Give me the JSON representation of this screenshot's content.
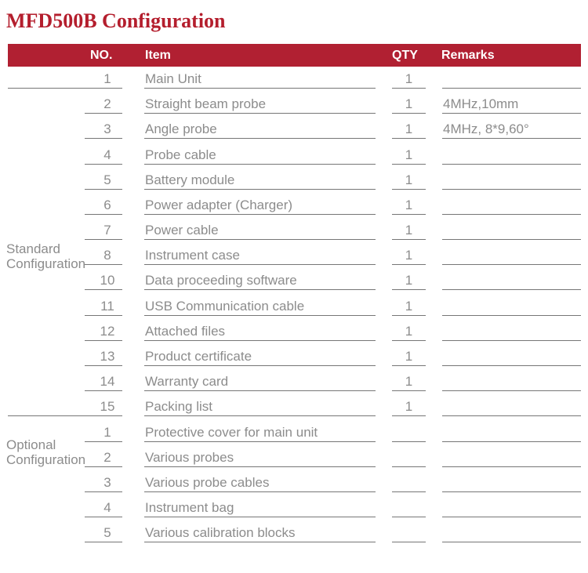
{
  "page_title": "MFD500B Configuration",
  "colors": {
    "accent_red": "#b12032",
    "title_red": "#b41e2d",
    "text_gray": "#8c8c8c",
    "line_gray": "#767676"
  },
  "table": {
    "headers": {
      "no": "NO.",
      "item": "Item",
      "qty": "QTY",
      "remarks": "Remarks"
    },
    "groups": [
      {
        "label": "Standard Configuration",
        "rows": [
          {
            "no": "1",
            "item": "Main Unit",
            "qty": "1",
            "remarks": ""
          },
          {
            "no": "2",
            "item": "Straight beam probe",
            "qty": "1",
            "remarks": "4MHz,10mm"
          },
          {
            "no": "3",
            "item": "Angle probe",
            "qty": "1",
            "remarks": "4MHz, 8*9,60°"
          },
          {
            "no": "4",
            "item": "Probe cable",
            "qty": "1",
            "remarks": ""
          },
          {
            "no": "5",
            "item": "Battery module",
            "qty": "1",
            "remarks": ""
          },
          {
            "no": "6",
            "item": "Power adapter (Charger)",
            "qty": "1",
            "remarks": ""
          },
          {
            "no": "7",
            "item": "Power cable",
            "qty": "1",
            "remarks": ""
          },
          {
            "no": "8",
            "item": "Instrument case",
            "qty": "1",
            "remarks": ""
          },
          {
            "no": "10",
            "item": "Data proceeding software",
            "qty": "1",
            "remarks": ""
          },
          {
            "no": "11",
            "item": "USB Communication cable",
            "qty": "1",
            "remarks": ""
          },
          {
            "no": "12",
            "item": "Attached files",
            "qty": "1",
            "remarks": ""
          },
          {
            "no": "13",
            "item": "Product certificate",
            "qty": "1",
            "remarks": ""
          },
          {
            "no": "14",
            "item": "Warranty card",
            "qty": "1",
            "remarks": ""
          },
          {
            "no": "15",
            "item": "Packing list",
            "qty": "1",
            "remarks": ""
          }
        ]
      },
      {
        "label": "Optional Configuration",
        "rows": [
          {
            "no": "1",
            "item": "Protective cover for main unit",
            "qty": "",
            "remarks": ""
          },
          {
            "no": "2",
            "item": "Various probes",
            "qty": "",
            "remarks": ""
          },
          {
            "no": "3",
            "item": "Various probe cables",
            "qty": "",
            "remarks": ""
          },
          {
            "no": "4",
            "item": "Instrument bag",
            "qty": "",
            "remarks": ""
          },
          {
            "no": "5",
            "item": "Various calibration blocks",
            "qty": "",
            "remarks": ""
          }
        ]
      }
    ]
  }
}
